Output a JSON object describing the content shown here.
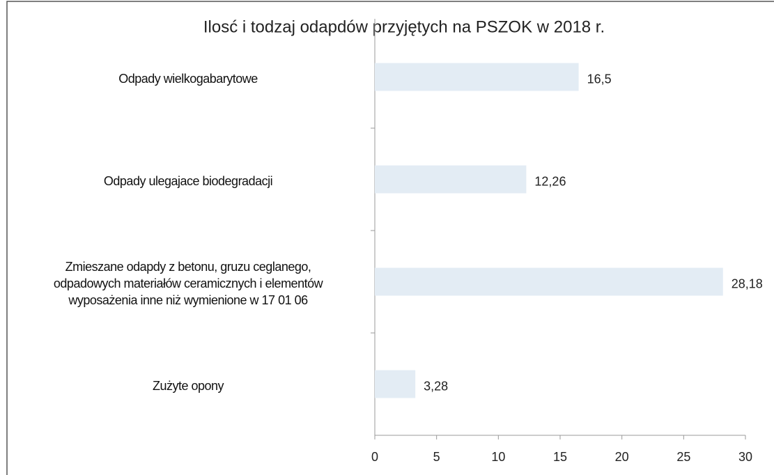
{
  "chart_data": {
    "type": "bar",
    "orientation": "horizontal",
    "title": "Ilosć i todzaj odapdów przyjętych na PSZOK w 2018 r.",
    "categories": [
      "Odpady wielkogabarytowe",
      "Odpady ulegajace biodegradacji",
      "Zmieszane odapdy z betonu, gruzu ceglanego,\nodpadowych materiałów ceramicznych i elementów\nwyposażenia inne niż wymienione w 17 01 06",
      "Zużyte opony"
    ],
    "values": [
      16.5,
      12.26,
      28.18,
      3.28
    ],
    "value_labels": [
      "16,5",
      "12,26",
      "28,18",
      "3,28"
    ],
    "color": "#e3ecf4",
    "xlim": [
      0,
      30
    ],
    "xticks": [
      0,
      5,
      10,
      15,
      20,
      25,
      30
    ],
    "grid": false
  }
}
